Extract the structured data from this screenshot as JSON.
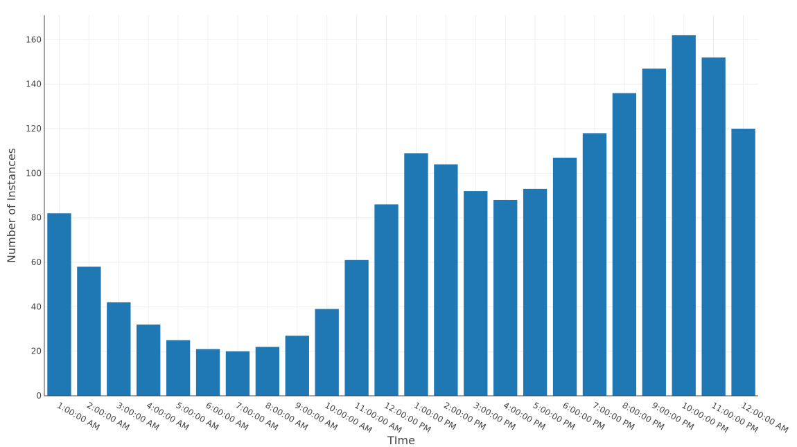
{
  "chart_data": {
    "type": "bar",
    "x_label": "TIme",
    "y_label": "Number of Instances",
    "categories": [
      "1:00:00 AM",
      "2:00:00 AM",
      "3:00:00 AM",
      "4:00:00 AM",
      "5:00:00 AM",
      "6:00:00 AM",
      "7:00:00 AM",
      "8:00:00 AM",
      "9:00:00 AM",
      "10:00:00 AM",
      "11:00:00 AM",
      "12:00:00 PM",
      "1:00:00 PM",
      "2:00:00 PM",
      "3:00:00 PM",
      "4:00:00 PM",
      "5:00:00 PM",
      "6:00:00 PM",
      "7:00:00 PM",
      "8:00:00 PM",
      "9:00:00 PM",
      "10:00:00 PM",
      "11:00:00 PM",
      "12:00:00 AM"
    ],
    "values": [
      82,
      58,
      42,
      32,
      25,
      21,
      20,
      22,
      27,
      39,
      61,
      86,
      109,
      104,
      92,
      88,
      93,
      107,
      118,
      136,
      147,
      162,
      152,
      120
    ],
    "color": "#1f77b4",
    "ylim": [
      0,
      171
    ],
    "yticks": [
      0,
      20,
      40,
      60,
      80,
      100,
      120,
      140,
      160
    ],
    "grid": true
  }
}
